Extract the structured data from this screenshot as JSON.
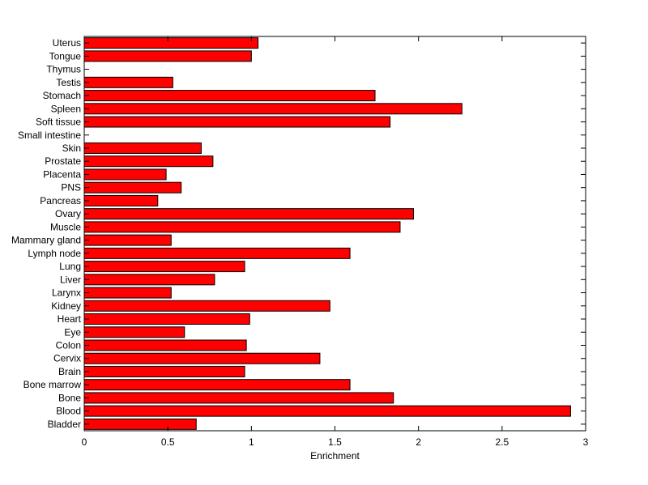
{
  "chart_data": {
    "type": "bar",
    "orientation": "horizontal",
    "title": "",
    "xlabel": "Enrichment",
    "ylabel": "",
    "xlim": [
      0,
      3
    ],
    "xticks": [
      "0",
      "0.5",
      "1",
      "1.5",
      "2",
      "2.5",
      "3"
    ],
    "grid": false,
    "bar_color": "#ff0000",
    "categories": [
      "Uterus",
      "Tongue",
      "Thymus",
      "Testis",
      "Stomach",
      "Spleen",
      "Soft tissue",
      "Small intestine",
      "Skin",
      "Prostate",
      "Placenta",
      "PNS",
      "Pancreas",
      "Ovary",
      "Muscle",
      "Mammary gland",
      "Lymph node",
      "Lung",
      "Liver",
      "Larynx",
      "Kidney",
      "Heart",
      "Eye",
      "Colon",
      "Cervix",
      "Brain",
      "Bone marrow",
      "Bone",
      "Blood",
      "Bladder"
    ],
    "values": [
      1.04,
      1.0,
      0,
      0.53,
      1.74,
      2.26,
      1.83,
      0,
      0.7,
      0.77,
      0.49,
      0.58,
      0.44,
      1.97,
      1.89,
      0.52,
      1.59,
      0.96,
      0.78,
      0.52,
      1.47,
      0.99,
      0.6,
      0.97,
      1.41,
      0.96,
      1.59,
      1.85,
      2.91,
      0.67
    ]
  }
}
